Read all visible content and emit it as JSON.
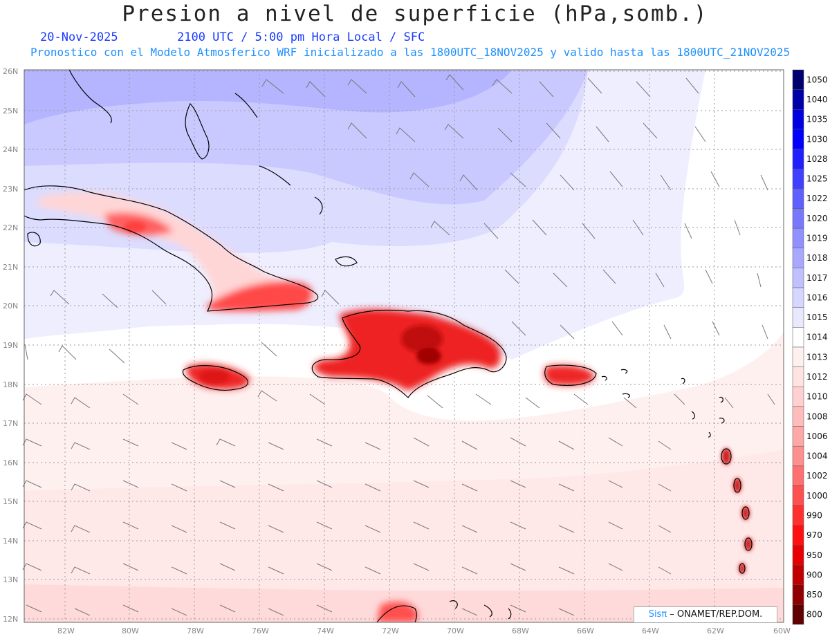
{
  "header": {
    "title": "Presion a nivel de superficie (hPa,somb.)",
    "date": "20-Nov-2025",
    "time_info": "2100 UTC / 5:00 pm Hora Local / SFC",
    "model_info": "Pronostico con el Modelo Atmosferico WRF inicializado a las 1800UTC_18NOV2025 y valido hasta las  1800UTC_21NOV2025"
  },
  "map": {
    "lat_labels": [
      "26N",
      "25N",
      "24N",
      "23N",
      "22N",
      "21N",
      "20N",
      "19N",
      "18N",
      "17N",
      "16N",
      "15N",
      "14N",
      "13N",
      "12N"
    ],
    "lon_labels": [
      "82W",
      "80W",
      "78W",
      "76W",
      "74W",
      "72W",
      "70W",
      "68W",
      "66W",
      "64W",
      "62W",
      "60W"
    ],
    "regions": [
      "Cuba",
      "Bahamas",
      "Jamaica",
      "Hispaniola",
      "Puerto Rico",
      "Lesser Antilles"
    ]
  },
  "colorbar": {
    "levels": [
      "1050",
      "1040",
      "1035",
      "1030",
      "1028",
      "1025",
      "1022",
      "1020",
      "1019",
      "1018",
      "1017",
      "1016",
      "1015",
      "1014",
      "1013",
      "1012",
      "1010",
      "1008",
      "1006",
      "1004",
      "1002",
      "1000",
      "990",
      "970",
      "950",
      "900",
      "850",
      "800"
    ],
    "colors": [
      "#000070",
      "#0000a8",
      "#0000e0",
      "#0000ff",
      "#2020ff",
      "#4040ff",
      "#6060ff",
      "#7878ff",
      "#9090ff",
      "#a8a8ff",
      "#c0c0ff",
      "#d6d6ff",
      "#e8e8ff",
      "#ffffff",
      "#fff0f0",
      "#ffe2e2",
      "#ffd0d0",
      "#ffbcbc",
      "#ffa8a8",
      "#ff9090",
      "#ff7070",
      "#ff5050",
      "#ff3030",
      "#ff1010",
      "#e80000",
      "#c00000",
      "#900000",
      "#600000"
    ]
  },
  "credit": {
    "sis": "Sisπ",
    "org": " –  ONAMET/REP.DOM."
  }
}
